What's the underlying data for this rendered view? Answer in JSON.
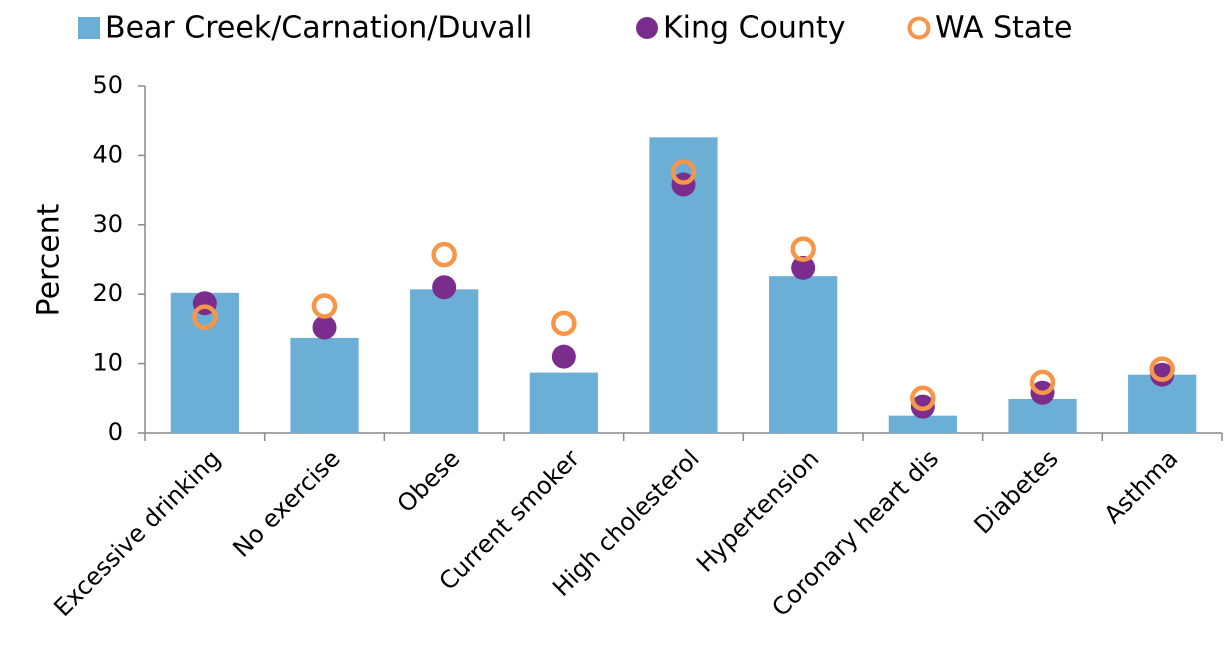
{
  "chart_data": {
    "type": "bar",
    "y_label": "Percent",
    "categories": [
      "Excessive drinking",
      "No exercise",
      "Obese",
      "Current smoker",
      "High cholesterol",
      "Hypertension",
      "Coronary heart dis",
      "Diabetes",
      "Asthma"
    ],
    "series": [
      {
        "name": "Bear Creek/Carnation/Duvall",
        "color": "#6baed6",
        "marker": "bar",
        "values": [
          20.2,
          13.7,
          20.7,
          8.7,
          42.6,
          22.6,
          2.5,
          4.9,
          8.4
        ]
      },
      {
        "name": "King County",
        "color": "#7b2d8e",
        "marker": "dot",
        "values": [
          18.7,
          15.2,
          21,
          11,
          35.8,
          23.8,
          3.8,
          5.8,
          8.4
        ]
      },
      {
        "name": "WA State",
        "color": "#f79646",
        "marker": "ring",
        "values": [
          16.7,
          18.3,
          25.7,
          15.8,
          37.6,
          26.5,
          5,
          7.3,
          9.2
        ]
      }
    ],
    "ylim": [
      0,
      50
    ],
    "yticks": [
      0,
      10,
      20,
      30,
      40,
      50
    ],
    "grid": false,
    "legend": "top"
  }
}
